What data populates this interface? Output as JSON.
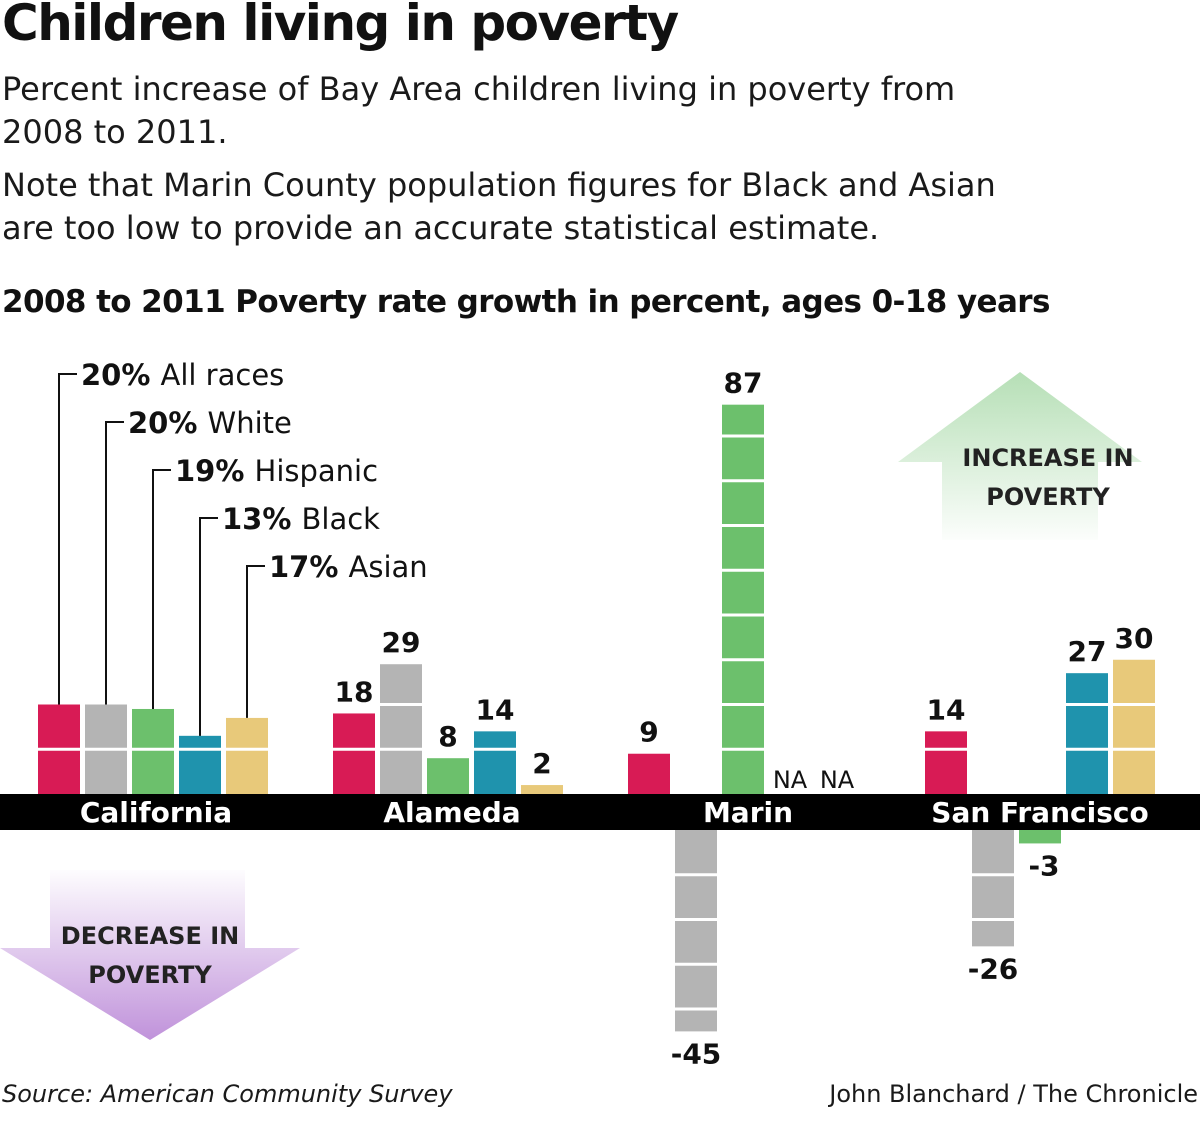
{
  "header": {
    "title": "Children living in poverty",
    "subtitle_lines": [
      "Percent increase of Bay Area children living in poverty from",
      "2008 to 2011."
    ],
    "note_lines": [
      "Note that Marin County population figures for Black and Asian",
      "are too low to provide an accurate statistical estimate."
    ]
  },
  "footer": {
    "source": "Source: American Community Survey",
    "credit": "John Blanchard / The Chronicle"
  },
  "colors": {
    "All races": "#d81b55",
    "White": "#b4b4b4",
    "Hispanic": "#6cc06c",
    "Black": "#1f93ad",
    "Asian": "#e8c97a",
    "axis_band": "#000000",
    "increase_arrow": "#5cb85c",
    "decrease_arrow": "#b57fd4"
  },
  "chart_data": {
    "type": "bar",
    "title": "2008 to 2011 Poverty rate growth in percent, ages 0-18 years",
    "categories": [
      "California",
      "Alameda",
      "Marin",
      "San Francisco"
    ],
    "series": [
      {
        "name": "All races",
        "values": [
          20,
          18,
          9,
          14
        ]
      },
      {
        "name": "White",
        "values": [
          20,
          29,
          -45,
          -26
        ]
      },
      {
        "name": "Hispanic",
        "values": [
          19,
          8,
          87,
          -3
        ]
      },
      {
        "name": "Black",
        "values": [
          13,
          14,
          null,
          27
        ]
      },
      {
        "name": "Asian",
        "values": [
          17,
          2,
          null,
          30
        ]
      }
    ],
    "value_labels": [
      [
        "20%",
        "20%",
        "19%",
        "13%",
        "17%"
      ],
      [
        "18",
        "29",
        "8",
        "14",
        "2"
      ],
      [
        "9",
        "-45",
        "87",
        "NA",
        "NA"
      ],
      [
        "14",
        "-26",
        "-3",
        "27",
        "30"
      ]
    ],
    "legend_entries": [
      {
        "value": "20%",
        "label": "All races"
      },
      {
        "value": "20%",
        "label": "White"
      },
      {
        "value": "19%",
        "label": "Hispanic"
      },
      {
        "value": "13%",
        "label": "Black"
      },
      {
        "value": "17%",
        "label": "Asian"
      }
    ],
    "annotations": {
      "increase": [
        "INCREASE IN",
        "POVERTY"
      ],
      "decrease": [
        "DECREASE IN",
        "POVERTY"
      ]
    },
    "ylim": [
      -45,
      87
    ]
  }
}
